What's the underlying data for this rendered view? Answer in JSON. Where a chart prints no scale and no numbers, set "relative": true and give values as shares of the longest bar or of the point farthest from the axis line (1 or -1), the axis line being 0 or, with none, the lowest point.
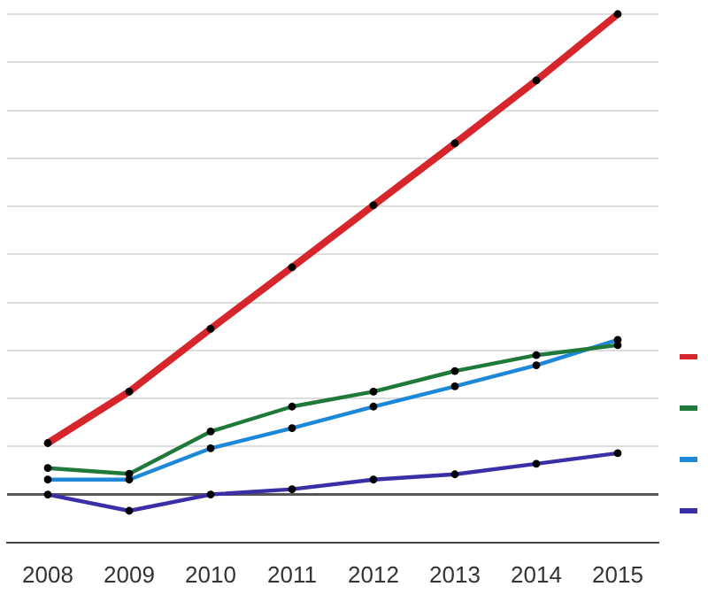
{
  "chart_data": {
    "type": "line",
    "relative": true,
    "categories": [
      "2008",
      "2009",
      "2010",
      "2011",
      "2012",
      "2013",
      "2014",
      "2015"
    ],
    "series": [
      {
        "color": "#d7262b",
        "values": [
          0.107,
          0.214,
          0.345,
          0.473,
          0.602,
          0.731,
          0.862,
          1
        ]
      },
      {
        "color": "#1f7a3a",
        "values": [
          0.055,
          0.043,
          0.131,
          0.183,
          0.214,
          0.257,
          0.29,
          0.311
        ]
      },
      {
        "color": "#1e88d8",
        "values": [
          0.031,
          0.031,
          0.096,
          0.138,
          0.183,
          0.225,
          0.269,
          0.322
        ]
      },
      {
        "color": "#3b2fa8",
        "values": [
          0,
          -0.034,
          0,
          0.011,
          0.031,
          0.042,
          0.064,
          0.086
        ]
      }
    ],
    "grid": "y",
    "marker": "circle",
    "line_style": "solid"
  }
}
